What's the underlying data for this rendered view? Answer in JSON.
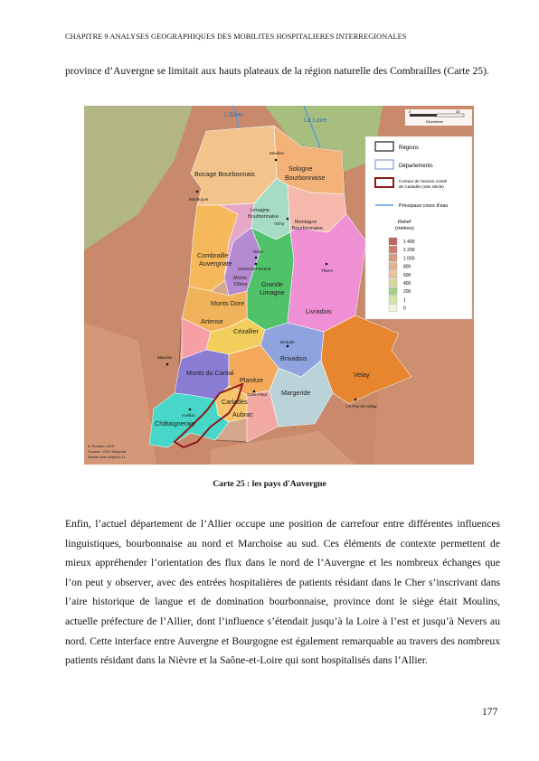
{
  "header": {
    "running_title": "CHAPITRE 9 ANALYSES GEOGRAPHIQUES DES MOBILITES HOSPITALIERES INTERREGIONALES"
  },
  "paragraphs": {
    "intro": "province d’Auvergne se limitait aux hauts plateaux de la région naturelle des Combrailles (Carte 25).",
    "body": "Enfin, l’actuel département de l’Allier occupe une position de carrefour entre différentes influences linguistiques, bourbonnaise au nord et Marchoise au sud. Ces éléments de contexte permettent de mieux appréhender l’orientation des flux dans le nord de l’Auvergne et les nombreux échanges que l’on peut y observer, avec des entrées hospitalières de patients résidant dans le Cher s’inscrivant dans l’aire historique de langue et de domination bourbonnaise, province dont le siège était Moulins, actuelle préfecture de l’Allier, dont l’influence s’étendait jusqu’à la Loire à l’est et jusqu’à Nevers au nord. Cette interface entre Auvergne et Bourgogne est également remarquable au travers des nombreux patients résidant dans la Nièvre et la Saône-et-Loire qui sont hospitalisés dans l’Allier."
  },
  "figure": {
    "caption": "Carte 25 : les pays d'Auvergne",
    "rivers": {
      "allier": "L'Allier",
      "loire": "La Loire"
    },
    "scale": {
      "zero": "0",
      "max": "35",
      "unit": "Kilomètres"
    },
    "legend": {
      "regions": "Régions",
      "departements": "Départements",
      "carlades_line1": "Contour de l'ancien comté",
      "carlades_line2": "de Carladès (18e siècle)",
      "rivers": "Principaux cours d'eau",
      "relief_title1": "Relief",
      "relief_title2": "(mètres)",
      "relief_levels": [
        {
          "label": "1 400",
          "color": "#c0685f"
        },
        {
          "label": "1 200",
          "color": "#cc7f6f"
        },
        {
          "label": "1 000",
          "color": "#d89a82"
        },
        {
          "label": "800",
          "color": "#e0b092"
        },
        {
          "label": "600",
          "color": "#e6c29e"
        },
        {
          "label": "400",
          "color": "#d8d69a"
        },
        {
          "label": "200",
          "color": "#a6d08a"
        },
        {
          "label": "1",
          "color": "#cfe6a6"
        },
        {
          "label": "0",
          "color": "#f4f4d8"
        }
      ]
    },
    "pays": {
      "bocage": "Bocage Bourbonnais",
      "sologne1": "Sologne",
      "sologne2": "Bourbonnaise",
      "limagne_b1": "Limagne",
      "limagne_b2": "Bourbonnaise",
      "montagne_b1": "Montagne",
      "montagne_b2": "Bourbonnaise",
      "combraille1": "Combraille",
      "combraille2": "Auvergnate",
      "monts_dome1": "Monts",
      "monts_dome2": "Dôme",
      "grande_limagne1": "Grande",
      "grande_limagne2": "Limagne",
      "monts_dore": "Monts Dore",
      "livradois": "Livradois",
      "artense": "Artense",
      "cezallier": "Cézallier",
      "brivadois": "Brivadois",
      "monts_cantal": "Monts du Cantal",
      "velay": "Velay",
      "planeze": "Planèze",
      "margeride": "Margeride",
      "carlades": "Carladès",
      "aubrac": "Aubrac",
      "chataigneraie": "Châtaigneraie"
    },
    "cities": {
      "moulins": "Moulins",
      "montlucon": "Montluçon",
      "vichy": "Vichy",
      "riom": "Riom",
      "clermont": "Clermont-Ferrand",
      "thiers": "Thiers",
      "brioude": "Brioude",
      "mauriac": "Mauriac",
      "saint_flour": "Saint-Flour",
      "aurillac": "Aurillac",
      "le_puy": "Le Puy-en-Velay"
    },
    "credits": {
      "line1": "A. Rousset, 2015",
      "line2": "Sources : IGN, Wikipedia",
      "line3": "Réalisé avec MapInfo 11"
    }
  },
  "footer": {
    "page_number": "177"
  }
}
